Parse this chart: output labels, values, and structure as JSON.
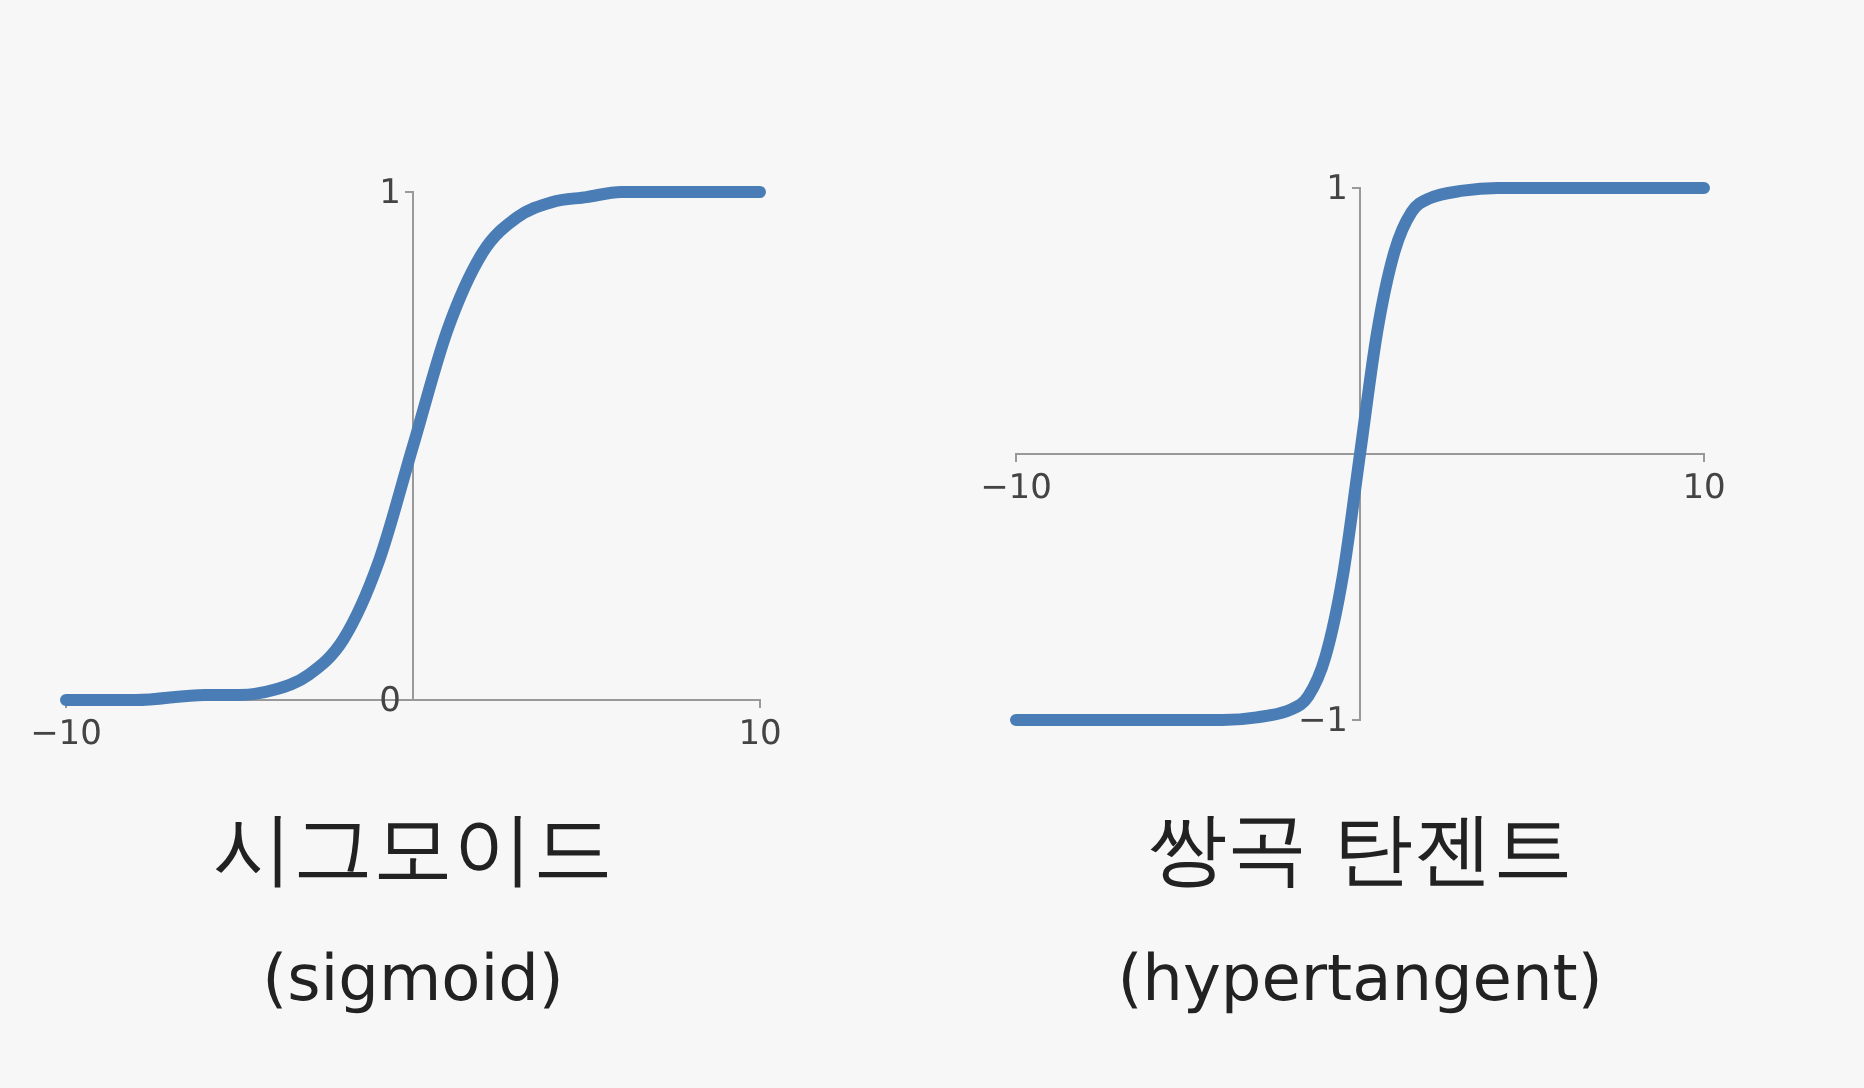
{
  "chart_data": [
    {
      "type": "line",
      "title": "시그모이드",
      "subtitle": "(sigmoid)",
      "x": [
        -10,
        -8,
        -6,
        -5,
        -4,
        -3,
        -2,
        -1,
        0,
        1,
        2,
        3,
        4,
        5,
        6,
        8,
        10
      ],
      "values": [
        0,
        0,
        0.01,
        0.01,
        0.02,
        0.05,
        0.12,
        0.27,
        0.5,
        0.73,
        0.88,
        0.95,
        0.98,
        0.99,
        1,
        1,
        1
      ],
      "color": "#4a7db5",
      "xlim": [
        -10,
        10
      ],
      "ylim": [
        0,
        1
      ],
      "xticks": [
        {
          "value": -10,
          "label": "−10"
        },
        10
      ],
      "yticks": [
        {
          "value": 0,
          "label": "0"
        },
        {
          "value": 1,
          "label": "1"
        }
      ]
    },
    {
      "type": "line",
      "title": "쌍곡 탄젠트",
      "subtitle": "(hypertangent)",
      "x": [
        -10,
        -6,
        -4,
        -3,
        -2,
        -1.5,
        -1,
        -0.5,
        0,
        0.5,
        1,
        1.5,
        2,
        3,
        4,
        6,
        10
      ],
      "values": [
        -1,
        -1,
        -1,
        -0.99,
        -0.96,
        -0.91,
        -0.76,
        -0.46,
        0,
        0.46,
        0.76,
        0.91,
        0.96,
        0.99,
        1,
        1,
        1
      ],
      "color": "#4a7db5",
      "xlim": [
        -10,
        10
      ],
      "ylim": [
        -1,
        1
      ],
      "xticks": [
        {
          "value": -10,
          "label": "−10"
        },
        10
      ],
      "yticks": [
        {
          "value": -1,
          "label": "−1"
        },
        1
      ]
    }
  ]
}
